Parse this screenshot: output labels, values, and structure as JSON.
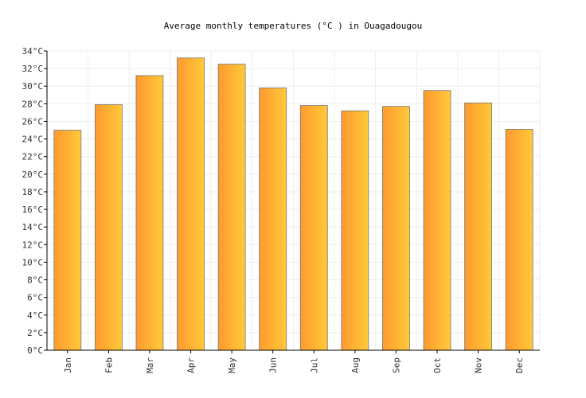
{
  "chart_data": {
    "type": "bar",
    "title": "Average monthly temperatures (°C ) in Ouagadougou",
    "xlabel": "",
    "ylabel": "",
    "categories": [
      "Jan",
      "Feb",
      "Mar",
      "Apr",
      "May",
      "Jun",
      "Jul",
      "Aug",
      "Sep",
      "Oct",
      "Nov",
      "Dec"
    ],
    "values": [
      25.0,
      27.9,
      31.2,
      33.2,
      32.5,
      29.8,
      27.8,
      27.2,
      27.7,
      29.5,
      28.1,
      25.1
    ],
    "ylim": [
      0,
      34
    ],
    "y_tick_step": 2,
    "y_tick_suffix": "°C",
    "grid": true,
    "legend": "none",
    "colors": {
      "bar_left": "#ff9a2e",
      "bar_right": "#ffc93a",
      "bar_stroke": "#777777",
      "grid": "#eeeeee",
      "axis": "#000000"
    }
  }
}
